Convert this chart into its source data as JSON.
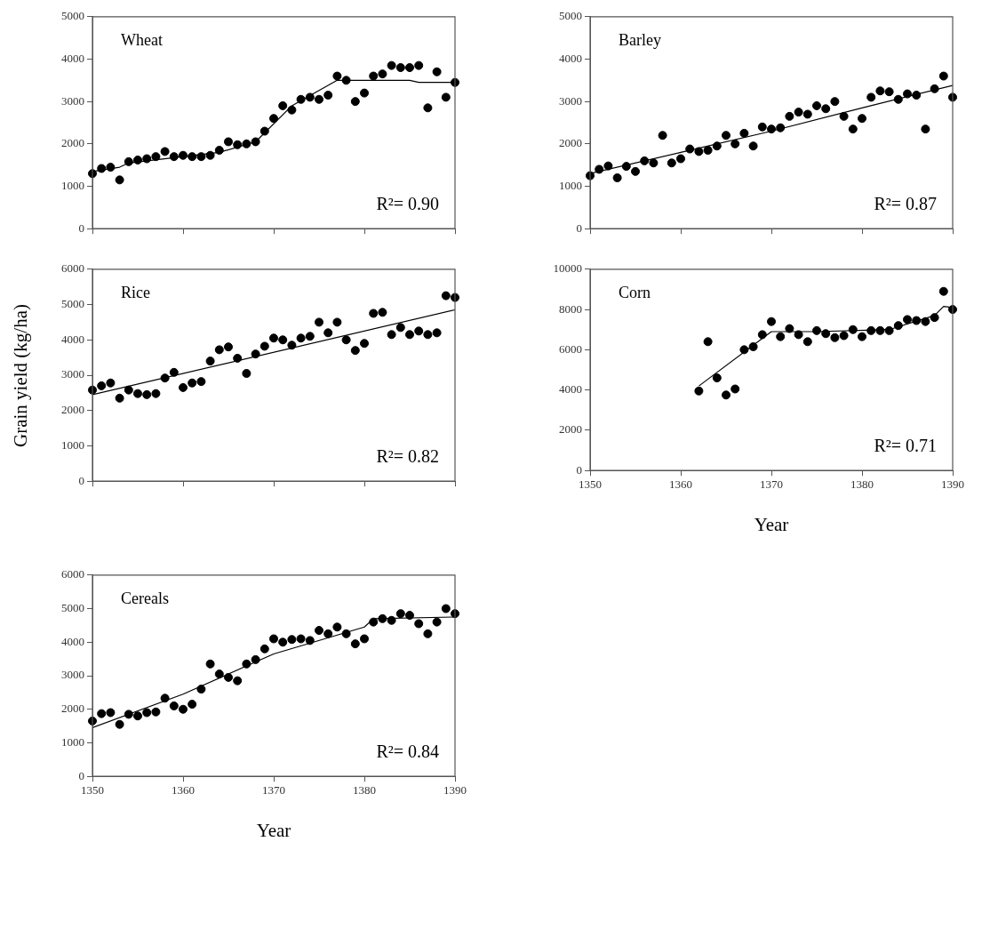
{
  "chart_data": [
    {
      "type": "scatter",
      "title": "Wheat",
      "x": [
        1350,
        1351,
        1352,
        1353,
        1354,
        1355,
        1356,
        1357,
        1358,
        1359,
        1360,
        1361,
        1362,
        1363,
        1364,
        1365,
        1366,
        1367,
        1368,
        1369,
        1370,
        1371,
        1372,
        1373,
        1374,
        1375,
        1376,
        1377,
        1378,
        1379,
        1380,
        1381,
        1382,
        1383,
        1384,
        1385,
        1386,
        1387,
        1388,
        1389,
        1390
      ],
      "xlim": [
        1350,
        1390
      ],
      "xticks": [
        1350,
        1360,
        1370,
        1380,
        1390
      ],
      "ylim": [
        0,
        5000
      ],
      "yticks": [
        0,
        1000,
        2000,
        3000,
        4000,
        5000
      ],
      "tick_labels": "y",
      "grid": false,
      "legend": false,
      "annotations": [
        "R²= 0.90"
      ],
      "series": [
        {
          "marker": "circle",
          "color": "#000000",
          "values": [
            1300,
            1420,
            1450,
            1150,
            1580,
            1620,
            1650,
            1700,
            1820,
            1700,
            1730,
            1700,
            1700,
            1730,
            1850,
            2050,
            1980,
            2000,
            2050,
            2300,
            2600,
            2900,
            2800,
            3050,
            3100,
            3050,
            3150,
            3600,
            3500,
            3000,
            3200,
            3600,
            3650,
            3850,
            3800,
            3800,
            3850,
            2850,
            3700,
            3100,
            3450
          ]
        },
        {
          "type": "line",
          "marker": "none",
          "color": "#000000",
          "x": [
            1350,
            1353,
            1354,
            1360,
            1364,
            1368,
            1372,
            1377,
            1385,
            1386,
            1390
          ],
          "values": [
            1350,
            1450,
            1550,
            1700,
            1800,
            2050,
            2900,
            3500,
            3500,
            3450,
            3450
          ]
        }
      ]
    },
    {
      "type": "scatter",
      "title": "Barley",
      "x": [
        1350,
        1351,
        1352,
        1353,
        1354,
        1355,
        1356,
        1357,
        1358,
        1359,
        1360,
        1361,
        1362,
        1363,
        1364,
        1365,
        1366,
        1367,
        1368,
        1369,
        1370,
        1371,
        1372,
        1373,
        1374,
        1375,
        1376,
        1377,
        1378,
        1379,
        1380,
        1381,
        1382,
        1383,
        1384,
        1385,
        1386,
        1387,
        1388,
        1389,
        1390
      ],
      "xlim": [
        1350,
        1390
      ],
      "xticks": [
        1350,
        1360,
        1370,
        1380,
        1390
      ],
      "ylim": [
        0,
        5000
      ],
      "yticks": [
        0,
        1000,
        2000,
        3000,
        4000,
        5000
      ],
      "tick_labels": "y",
      "grid": false,
      "legend": false,
      "annotations": [
        "R²= 0.87"
      ],
      "series": [
        {
          "marker": "circle",
          "color": "#000000",
          "values": [
            1250,
            1400,
            1480,
            1200,
            1470,
            1350,
            1600,
            1550,
            2200,
            1550,
            1650,
            1880,
            1820,
            1850,
            1950,
            2200,
            2000,
            2250,
            1950,
            2400,
            2350,
            2380,
            2650,
            2750,
            2700,
            2900,
            2830,
            3000,
            2650,
            2350,
            2600,
            3100,
            3250,
            3230,
            3050,
            3180,
            3150,
            2350,
            3300,
            3600,
            3100
          ]
        },
        {
          "type": "line",
          "marker": "none",
          "color": "#000000",
          "x": [
            1350,
            1360,
            1370,
            1380,
            1390
          ],
          "values": [
            1300,
            1800,
            2300,
            2850,
            3380
          ]
        }
      ]
    },
    {
      "type": "scatter",
      "title": "Rice",
      "ylabel": "Grain yield (kg/ha)",
      "x": [
        1350,
        1351,
        1352,
        1353,
        1354,
        1355,
        1356,
        1357,
        1358,
        1359,
        1360,
        1361,
        1362,
        1363,
        1364,
        1365,
        1366,
        1367,
        1368,
        1369,
        1370,
        1371,
        1372,
        1373,
        1374,
        1375,
        1376,
        1377,
        1378,
        1379,
        1380,
        1381,
        1382,
        1383,
        1384,
        1385,
        1386,
        1387,
        1388,
        1389,
        1390
      ],
      "xlim": [
        1350,
        1390
      ],
      "xticks": [
        1350,
        1360,
        1370,
        1380,
        1390
      ],
      "ylim": [
        0,
        6000
      ],
      "yticks": [
        0,
        1000,
        2000,
        3000,
        4000,
        5000,
        6000
      ],
      "tick_labels": "y",
      "grid": false,
      "legend": false,
      "annotations": [
        "R²= 0.82"
      ],
      "series": [
        {
          "marker": "circle",
          "color": "#000000",
          "values": [
            2580,
            2700,
            2780,
            2350,
            2580,
            2480,
            2450,
            2480,
            2920,
            3080,
            2650,
            2780,
            2820,
            3400,
            3720,
            3800,
            3480,
            3050,
            3600,
            3820,
            4050,
            4000,
            3850,
            4050,
            4100,
            4500,
            4200,
            4500,
            4000,
            3700,
            3900,
            4750,
            4780,
            4150,
            4350,
            4150,
            4250,
            4150,
            4200,
            5250,
            5200
          ]
        },
        {
          "type": "line",
          "marker": "none",
          "color": "#000000",
          "x": [
            1350,
            1390
          ],
          "values": [
            2450,
            4850
          ]
        }
      ]
    },
    {
      "type": "scatter",
      "title": "Corn",
      "xlabel": "Year",
      "x": [
        1362,
        1363,
        1364,
        1365,
        1366,
        1367,
        1368,
        1369,
        1370,
        1371,
        1372,
        1373,
        1374,
        1375,
        1376,
        1377,
        1378,
        1379,
        1380,
        1381,
        1382,
        1383,
        1384,
        1385,
        1386,
        1387,
        1388,
        1389,
        1390
      ],
      "xlim": [
        1350,
        1390
      ],
      "xticks": [
        1350,
        1360,
        1370,
        1380,
        1390
      ],
      "ylim": [
        0,
        10000
      ],
      "yticks": [
        0,
        2000,
        4000,
        6000,
        8000,
        10000
      ],
      "grid": false,
      "legend": false,
      "annotations": [
        "R²= 0.71"
      ],
      "series": [
        {
          "marker": "circle",
          "color": "#000000",
          "values": [
            3950,
            6400,
            4600,
            3750,
            4050,
            6000,
            6150,
            6750,
            7400,
            6650,
            7050,
            6750,
            6400,
            6950,
            6800,
            6600,
            6700,
            7000,
            6650,
            6950,
            6950,
            6950,
            7200,
            7500,
            7450,
            7400,
            7600,
            8900,
            8000
          ]
        },
        {
          "type": "line",
          "marker": "none",
          "color": "#000000",
          "x": [
            1362,
            1370,
            1375,
            1383,
            1388,
            1389,
            1390
          ],
          "values": [
            4200,
            6900,
            6900,
            7000,
            7700,
            8150,
            8100
          ]
        }
      ]
    },
    {
      "type": "scatter",
      "title": "Cereals",
      "xlabel": "Year",
      "x": [
        1350,
        1351,
        1352,
        1353,
        1354,
        1355,
        1356,
        1357,
        1358,
        1359,
        1360,
        1361,
        1362,
        1363,
        1364,
        1365,
        1366,
        1367,
        1368,
        1369,
        1370,
        1371,
        1372,
        1373,
        1374,
        1375,
        1376,
        1377,
        1378,
        1379,
        1380,
        1381,
        1382,
        1383,
        1384,
        1385,
        1386,
        1387,
        1388,
        1389,
        1390
      ],
      "xlim": [
        1350,
        1390
      ],
      "xticks": [
        1350,
        1360,
        1370,
        1380,
        1390
      ],
      "ylim": [
        0,
        6000
      ],
      "yticks": [
        0,
        1000,
        2000,
        3000,
        4000,
        5000,
        6000
      ],
      "grid": false,
      "legend": false,
      "annotations": [
        "R²= 0.84"
      ],
      "series": [
        {
          "marker": "circle",
          "color": "#000000",
          "values": [
            1650,
            1870,
            1900,
            1550,
            1850,
            1800,
            1900,
            1920,
            2330,
            2100,
            2000,
            2150,
            2600,
            3350,
            3050,
            2950,
            2850,
            3350,
            3480,
            3800,
            4100,
            4000,
            4080,
            4100,
            4050,
            4350,
            4250,
            4450,
            4250,
            3950,
            4100,
            4600,
            4700,
            4650,
            4850,
            4800,
            4550,
            4250,
            4600,
            5000,
            4850
          ]
        },
        {
          "type": "line",
          "marker": "none",
          "color": "#000000",
          "x": [
            1350,
            1360,
            1370,
            1380,
            1381,
            1390
          ],
          "values": [
            1450,
            2450,
            3650,
            4450,
            4700,
            4750
          ]
        }
      ]
    }
  ]
}
